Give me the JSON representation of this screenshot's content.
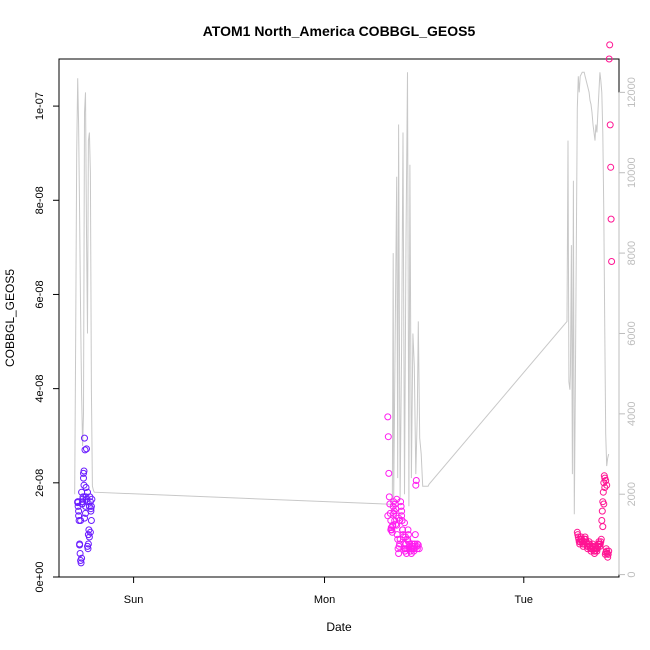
{
  "chart_data": {
    "type": "scatter",
    "title": "ATOM1 North_America COBBGL_GEOS5",
    "xlabel": "Date",
    "ylabel": "COBBGL_GEOS5",
    "x_ticks": [
      "Sun",
      "Mon",
      "Tue"
    ],
    "y_ticks": [
      "0e+00",
      "2e-08",
      "4e-08",
      "6e-08",
      "8e-08",
      "1e-07"
    ],
    "y_tick_values": [
      0,
      2e-08,
      4e-08,
      6e-08,
      8e-08,
      1e-07
    ],
    "y_right_ticks": [
      "0",
      "2000",
      "4000",
      "6000",
      "8000",
      "10000",
      "12000"
    ],
    "y_right_tick_values": [
      0,
      2000,
      4000,
      6000,
      8000,
      10000,
      12000
    ],
    "x_range_hours": [
      -15.2,
      98.9
    ],
    "ylim": [
      0,
      1.1e-07
    ],
    "y_right_lim": [
      -60,
      12830
    ],
    "grid": false,
    "colors": {
      "group1": "#6a1cff",
      "group2": "#ff1ef0",
      "group3": "#ff1493",
      "line": "#c8c8c8",
      "axis": "#000000",
      "right_axis": "#bdbdbd"
    },
    "series": [
      {
        "color_key": "group1",
        "x": [
          -11.4,
          -11.3,
          -11.2,
          -11.1,
          -11.0,
          -10.9,
          -10.8,
          -10.7,
          -10.6,
          -10.5,
          -10.4,
          -10.3,
          -10.2,
          -10.1,
          -10.0,
          -9.9,
          -9.8,
          -9.7,
          -9.6,
          -9.5,
          -9.4,
          -9.3,
          -9.2,
          -9.1,
          -9.0,
          -8.9,
          -8.8,
          -8.7,
          -8.6,
          -8.5,
          -11.4,
          -11.0,
          -10.6,
          -10.2,
          -9.8,
          -9.4,
          -9.0,
          -8.8,
          -8.6,
          -11.2,
          -10.8,
          -10.4,
          -10.0,
          -9.6,
          -9.2,
          -8.7,
          -10.5,
          -10.1,
          -9.7,
          -11.3
        ],
        "y": [
          1.6e-08,
          1.5e-08,
          1.4e-08,
          1.2e-08,
          7e-09,
          5e-09,
          3.5e-09,
          3e-09,
          4e-09,
          1.55e-08,
          1.6e-08,
          1.7e-08,
          2.2e-08,
          2.25e-08,
          2.95e-08,
          2.7e-08,
          1.5e-08,
          1.7e-08,
          1.65e-08,
          1.6e-08,
          6.5e-09,
          6e-09,
          7e-09,
          1e-08,
          1.5e-08,
          1.7e-08,
          1.6e-08,
          1.4e-08,
          1.2e-08,
          1.65e-08,
          1.58e-08,
          6.8e-09,
          1.8e-08,
          2.1e-08,
          1.35e-08,
          1.8e-08,
          8.5e-09,
          9.5e-09,
          1.5e-08,
          1.3e-08,
          1.2e-08,
          1.65e-08,
          1.25e-08,
          2.72e-08,
          9e-09,
          1.45e-08,
          1.55e-08,
          1.95e-08,
          1.9e-08,
          1.6e-08
        ]
      },
      {
        "color_key": "group2",
        "x": [
          51.8,
          51.9,
          52.0,
          52.1,
          52.2,
          52.3,
          52.4,
          52.5,
          52.6,
          52.7,
          52.8,
          52.9,
          53.0,
          53.1,
          53.2,
          53.3,
          53.4,
          53.5,
          53.6,
          53.7,
          53.8,
          53.9,
          54.0,
          54.1,
          54.2,
          54.3,
          54.4,
          54.5,
          54.6,
          54.7,
          54.8,
          54.9,
          55.0,
          55.1,
          55.2,
          55.3,
          55.4,
          55.5,
          55.6,
          55.7,
          55.8,
          55.9,
          56.0,
          56.1,
          56.2,
          56.3,
          56.4,
          56.5,
          56.6,
          56.7,
          56.8,
          56.9,
          57.0,
          57.1,
          57.2,
          57.3,
          57.4,
          57.5,
          57.6,
          57.7,
          57.8,
          58.0,
          58.2,
          51.8,
          52.4,
          53.0,
          53.6,
          54.2,
          54.8,
          55.4,
          56.0,
          56.6,
          57.2,
          57.8,
          52.8,
          53.4,
          54.0,
          54.6,
          55.2
        ],
        "y": [
          3.4e-08,
          2.98e-08,
          2.2e-08,
          1.7e-08,
          1.55e-08,
          1.35e-08,
          1.2e-08,
          1.05e-08,
          1e-08,
          9.5e-09,
          1.1e-08,
          1.5e-08,
          1.6e-08,
          1.4e-08,
          1.2e-08,
          1.55e-08,
          1.45e-08,
          1.3e-08,
          1.1e-08,
          9e-09,
          8e-09,
          6e-09,
          5e-09,
          6.5e-09,
          7e-09,
          8e-09,
          1.6e-08,
          1.5e-08,
          1.3e-08,
          1.2e-08,
          1e-08,
          9e-09,
          8.5e-09,
          7e-09,
          6e-09,
          5.5e-09,
          6e-09,
          7e-09,
          5e-09,
          6e-09,
          8e-09,
          1e-08,
          9e-09,
          6e-09,
          6.5e-09,
          7e-09,
          5.5e-09,
          6e-09,
          5e-09,
          6e-09,
          7e-09,
          6.5e-09,
          6e-09,
          5.5e-09,
          6e-09,
          7e-09,
          9e-09,
          1.95e-08,
          2.05e-08,
          6.5e-09,
          7e-09,
          6.8e-09,
          6e-09,
          1.3e-08,
          1e-08,
          1.35e-08,
          1.65e-08,
          1.2e-08,
          1e-08,
          8.5e-09,
          7.5e-09,
          6e-09,
          6.5e-09,
          6e-09,
          1.08e-08,
          1.12e-08,
          1.25e-08,
          1.4e-08,
          1.15e-08
        ]
      },
      {
        "color_key": "group3",
        "x": [
          90.4,
          90.5,
          90.6,
          90.7,
          90.8,
          90.9,
          91.0,
          91.1,
          91.2,
          91.3,
          91.4,
          91.5,
          91.6,
          91.7,
          91.8,
          91.9,
          92.0,
          92.1,
          92.2,
          92.3,
          92.4,
          92.5,
          92.6,
          92.7,
          92.8,
          92.9,
          93.0,
          93.1,
          93.2,
          93.3,
          93.4,
          93.5,
          93.6,
          93.7,
          93.8,
          93.9,
          94.0,
          94.1,
          94.2,
          94.3,
          94.4,
          94.5,
          94.6,
          94.7,
          94.8,
          94.9,
          95.0,
          95.1,
          95.2,
          95.3,
          95.4,
          95.5,
          95.6,
          95.7,
          95.8,
          95.9,
          96.0,
          96.1,
          96.2,
          96.3,
          96.4,
          96.5,
          96.6,
          96.7,
          96.8,
          96.9,
          97.0,
          97.1,
          97.2,
          97.3,
          97.4,
          95.6,
          95.8,
          96.0,
          96.2,
          96.4
        ],
        "y": [
          9.5e-09,
          9e-09,
          8.5e-09,
          8e-09,
          7.5e-09,
          7e-09,
          7.5e-09,
          8e-09,
          8.5e-09,
          8e-09,
          7.5e-09,
          7e-09,
          6.5e-09,
          7e-09,
          7.5e-09,
          8e-09,
          8.5e-09,
          8e-09,
          7.5e-09,
          7e-09,
          6.5e-09,
          6e-09,
          6.5e-09,
          7e-09,
          7.5e-09,
          7e-09,
          6.5e-09,
          6e-09,
          5.5e-09,
          6e-09,
          6.5e-09,
          7e-09,
          6.5e-09,
          6e-09,
          5.5e-09,
          5e-09,
          5.5e-09,
          6e-09,
          6.5e-09,
          6e-09,
          5.5e-09,
          6e-09,
          6.5e-09,
          7e-09,
          7.5e-09,
          7e-09,
          6.5e-09,
          7e-09,
          7.5e-09,
          8e-09,
          1.2e-08,
          1.4e-08,
          1.6e-08,
          1.8e-08,
          2e-08,
          2.15e-08,
          2.1e-08,
          4.8e-09,
          5.2e-09,
          6e-09,
          5.5e-09,
          5e-09,
          4.2e-09,
          4.8e-09,
          5.5e-09,
          1.1e-07,
          1.13e-07,
          9.6e-08,
          8.7e-08,
          7.6e-08,
          6.7e-08,
          1.07e-08,
          1.55e-08,
          1.9e-08,
          2.05e-08,
          1.95e-08
        ]
      }
    ],
    "secondary_line": {
      "x": [
        -12.0,
        -11.8,
        -11.6,
        -11.4,
        -11.2,
        -11.0,
        -10.8,
        -10.6,
        -10.4,
        -10.2,
        -10.0,
        -9.8,
        -9.6,
        -9.4,
        -9.2,
        -9.0,
        -8.8,
        -8.6,
        -8.4,
        -8.2,
        -8.0,
        52.5,
        52.7,
        52.9,
        53.0,
        53.3,
        53.6,
        53.8,
        54.0,
        54.3,
        54.6,
        54.9,
        55.2,
        55.5,
        55.8,
        56.1,
        56.3,
        56.6,
        56.9,
        57.2,
        57.5,
        57.8,
        58.0,
        58.3,
        58.6,
        58.9,
        60.0,
        60.2,
        88.3,
        88.5,
        88.7,
        88.9,
        89.0,
        89.2,
        89.4,
        89.6,
        89.8,
        90.0,
        90.2,
        90.4,
        90.6,
        90.8,
        91.0,
        91.2,
        91.4,
        91.6,
        91.8,
        92.0,
        92.2,
        92.4,
        92.6,
        92.8,
        93.0,
        93.2,
        93.4,
        93.6,
        93.8,
        94.0,
        94.2,
        94.4,
        94.6,
        94.8,
        95.0,
        95.2,
        95.4,
        95.6,
        95.8,
        96.0,
        96.2,
        96.4,
        96.6,
        96.8
      ],
      "y": [
        2000,
        6000,
        10500,
        12350,
        11200,
        9000,
        6500,
        4500,
        3200,
        4000,
        11500,
        12000,
        8500,
        6000,
        10800,
        11000,
        10000,
        4600,
        2200,
        2100,
        2050,
        1750,
        1700,
        8000,
        1900,
        6000,
        9900,
        2400,
        11200,
        1850,
        5600,
        11000,
        2000,
        8300,
        12500,
        1700,
        10200,
        2400,
        6000,
        5200,
        2500,
        4000,
        6300,
        3400,
        3000,
        2200,
        2200,
        2250,
        6300,
        10800,
        4800,
        4600,
        5000,
        8200,
        2500,
        9800,
        1500,
        4500,
        8100,
        11600,
        12400,
        12000,
        12400,
        12450,
        12500,
        12500,
        12500,
        12400,
        12300,
        12200,
        12100,
        12000,
        11800,
        11700,
        11500,
        11200,
        11000,
        10800,
        11200,
        11000,
        11500,
        12000,
        12500,
        12300,
        12000,
        11000,
        9000,
        6000,
        3500,
        2700,
        2900,
        3000
      ]
    }
  }
}
